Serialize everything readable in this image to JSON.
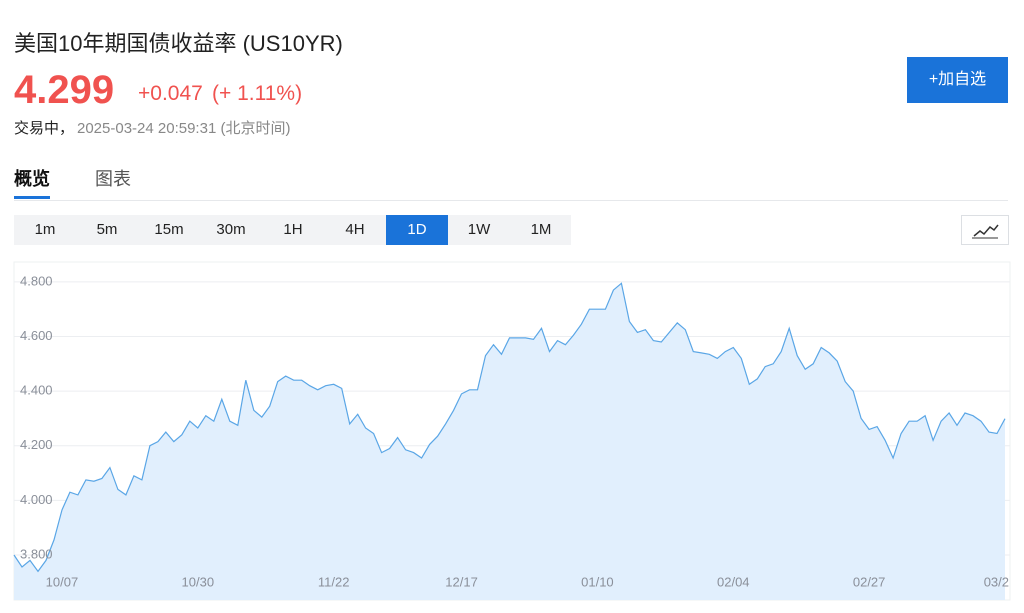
{
  "header": {
    "title": "美国10年期国债收益率 (US10YR)",
    "price": "4.299",
    "change": "+0.047",
    "change_pct": "(+ 1.11%)",
    "status": "交易中，",
    "timestamp": "2025-03-24 20:59:31 (北京时间)",
    "button": "+加自选"
  },
  "tabs": {
    "items": [
      "概览",
      "图表"
    ],
    "active": 0
  },
  "intervals": {
    "items": [
      "1m",
      "5m",
      "15m",
      "30m",
      "1H",
      "4H",
      "1D",
      "1W",
      "1M"
    ],
    "active": 6
  },
  "chart_data": {
    "type": "area",
    "color": "#5aa6e6",
    "fill": "#e1effd",
    "grid": true,
    "categories": [
      null,
      null,
      null,
      null,
      null,
      null,
      "10/07",
      null,
      null,
      null,
      null,
      null,
      null,
      null,
      null,
      null,
      null,
      null,
      null,
      null,
      null,
      null,
      null,
      "10/30",
      null,
      null,
      null,
      null,
      null,
      null,
      null,
      null,
      null,
      null,
      null,
      null,
      null,
      null,
      null,
      null,
      "11/22",
      null,
      null,
      null,
      null,
      null,
      null,
      null,
      null,
      null,
      null,
      null,
      null,
      null,
      null,
      null,
      "12/17",
      null,
      null,
      null,
      null,
      null,
      null,
      null,
      null,
      null,
      null,
      null,
      null,
      null,
      null,
      null,
      null,
      "01/10",
      null,
      null,
      null,
      null,
      null,
      null,
      null,
      null,
      null,
      null,
      null,
      null,
      null,
      null,
      null,
      null,
      "02/04",
      null,
      null,
      null,
      null,
      null,
      null,
      null,
      null,
      null,
      null,
      null,
      null,
      null,
      null,
      null,
      null,
      "02/27",
      null,
      null,
      null,
      null,
      null,
      null,
      null,
      null,
      null,
      null,
      null,
      null,
      null,
      null,
      null,
      null,
      "03/2"
    ],
    "values": [
      3.8,
      3.756,
      3.78,
      3.74,
      3.78,
      3.855,
      3.965,
      4.03,
      4.02,
      4.075,
      4.07,
      4.08,
      4.12,
      4.04,
      4.02,
      4.09,
      4.075,
      4.2,
      4.215,
      4.25,
      4.215,
      4.24,
      4.29,
      4.265,
      4.31,
      4.29,
      4.37,
      4.29,
      4.275,
      4.44,
      4.33,
      4.305,
      4.345,
      4.435,
      4.455,
      4.44,
      4.44,
      4.42,
      4.405,
      4.42,
      4.425,
      4.41,
      4.28,
      4.315,
      4.265,
      4.245,
      4.175,
      4.19,
      4.23,
      4.185,
      4.175,
      4.155,
      4.205,
      4.235,
      4.28,
      4.33,
      4.39,
      4.405,
      4.405,
      4.53,
      4.57,
      4.535,
      4.595,
      4.595,
      4.595,
      4.59,
      4.63,
      4.545,
      4.585,
      4.57,
      4.605,
      4.645,
      4.7,
      4.7,
      4.7,
      4.77,
      4.795,
      4.655,
      4.615,
      4.625,
      4.585,
      4.58,
      4.615,
      4.65,
      4.625,
      4.545,
      4.54,
      4.535,
      4.52,
      4.545,
      4.56,
      4.52,
      4.425,
      4.445,
      4.49,
      4.5,
      4.545,
      4.63,
      4.53,
      4.48,
      4.5,
      4.56,
      4.54,
      4.51,
      4.435,
      4.4,
      4.3,
      4.26,
      4.27,
      4.22,
      4.155,
      4.245,
      4.29,
      4.29,
      4.31,
      4.22,
      4.29,
      4.32,
      4.275,
      4.32,
      4.31,
      4.29,
      4.25,
      4.245,
      4.299
    ],
    "ylim": [
      3.635,
      4.873
    ],
    "yticks": [
      {
        "value": 3.8,
        "label": "3.800"
      },
      {
        "value": 4.0,
        "label": "4.000"
      },
      {
        "value": 4.2,
        "label": "4.200"
      },
      {
        "value": 4.4,
        "label": "4.400"
      },
      {
        "value": 4.6,
        "label": "4.600"
      },
      {
        "value": 4.8,
        "label": "4.800"
      }
    ]
  }
}
